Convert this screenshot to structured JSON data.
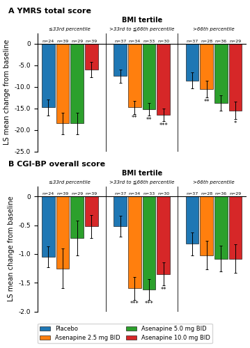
{
  "chart_data": [
    {
      "type": "bar",
      "title": "A YMRS total score",
      "subtitle": "BMI tertile",
      "ylabel": "LS mean change from baseline",
      "categories": [
        "≤33rd percentile",
        ">33rd to ≦66th percentile",
        ">66th percentile"
      ],
      "ylim": [
        -25.0,
        2.5
      ],
      "yticks": [
        0,
        -5.0,
        -10.0,
        -15.0,
        -20.0,
        -25.0
      ],
      "series": [
        {
          "name": "Placebo",
          "values": [
            -14.8,
            -7.5,
            -8.5
          ],
          "errors": [
            1.8,
            1.5,
            1.8
          ],
          "n_labels": [
            "n=24",
            "n=37",
            "n=37"
          ]
        },
        {
          "name": "Asenapine 2.5 mg BID",
          "values": [
            -18.5,
            -14.8,
            -10.5
          ],
          "errors": [
            2.5,
            1.5,
            2.0
          ],
          "n_labels": [
            "n=39",
            "n=34",
            "n=28"
          ],
          "significance": [
            null,
            "**",
            "**"
          ]
        },
        {
          "name": "Asenapine 5.0 mg BID",
          "values": [
            -18.5,
            -15.2,
            -13.8
          ],
          "errors": [
            2.5,
            1.5,
            1.8
          ],
          "n_labels": [
            "n=29",
            "n=33",
            "n=36"
          ],
          "significance": [
            null,
            "**",
            null
          ]
        },
        {
          "name": "Asenapine 10.0 mg BID",
          "values": [
            -6.0,
            -16.5,
            -15.5
          ],
          "errors": [
            1.8,
            1.5,
            2.0
          ],
          "n_labels": [
            "n=39",
            "n=30",
            "n=29"
          ],
          "significance": [
            null,
            "***",
            "*"
          ]
        }
      ]
    },
    {
      "type": "bar",
      "title": "B CGI-BP overall score",
      "subtitle": "BMI tertile",
      "ylabel": "LS mean change from baseline",
      "categories": [
        "≤33rd percentile",
        ">33rd to ≦66th percentile",
        ">66th percentile"
      ],
      "ylim": [
        -2.0,
        0.18
      ],
      "yticks": [
        0,
        -0.5,
        -1.0,
        -1.5,
        -2.0
      ],
      "legend": "lower center",
      "series": [
        {
          "name": "Placebo",
          "values": [
            -1.05,
            -0.52,
            -0.82
          ],
          "errors": [
            0.18,
            0.18,
            0.2
          ],
          "n_labels": [
            "n=24",
            "n=37",
            "n=37"
          ]
        },
        {
          "name": "Asenapine 2.5 mg BID",
          "values": [
            -1.25,
            -1.6,
            -1.02
          ],
          "errors": [
            0.35,
            0.2,
            0.25
          ],
          "n_labels": [
            "n=39",
            "n=34",
            "n=28"
          ],
          "significance": [
            null,
            "***",
            null
          ]
        },
        {
          "name": "Asenapine 5.0 mg BID",
          "values": [
            -0.72,
            -1.62,
            -1.08
          ],
          "errors": [
            0.3,
            0.18,
            0.22
          ],
          "n_labels": [
            "n=29",
            "n=33",
            "n=36"
          ],
          "significance": [
            null,
            "***",
            null
          ]
        },
        {
          "name": "Asenapine 10.0 mg BID",
          "values": [
            -0.52,
            -1.35,
            -1.08
          ],
          "errors": [
            0.2,
            0.2,
            0.25
          ],
          "n_labels": [
            "n=39",
            "n=30",
            "n=29"
          ],
          "significance": [
            null,
            "**",
            null
          ]
        }
      ]
    }
  ]
}
